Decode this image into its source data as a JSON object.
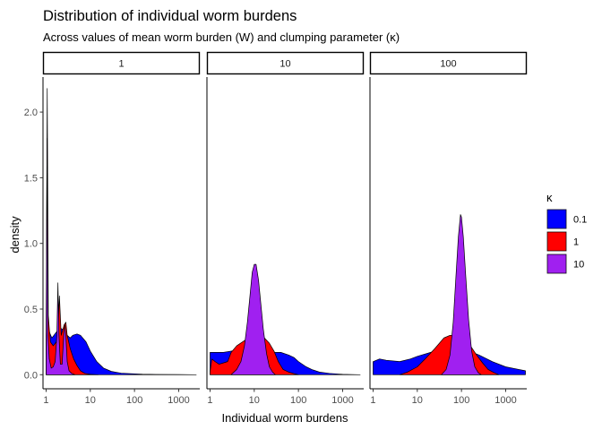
{
  "chart_data": {
    "type": "area",
    "title": "Distribution of individual worm burdens",
    "subtitle": "Across values of mean worm burden (W) and clumping parameter (κ)",
    "xlabel": "Individual worm burdens",
    "ylabel": "density",
    "x_scale": "log10",
    "x_ticks": [
      1,
      10,
      100,
      1000
    ],
    "x_tick_labels": [
      "1",
      "10",
      "100",
      "1000"
    ],
    "y_ticks": [
      0.0,
      0.5,
      1.0,
      1.5,
      2.0
    ],
    "y_tick_labels": [
      "0.0",
      "0.5",
      "1.0",
      "1.5",
      "2.0"
    ],
    "ylim": [
      0,
      2.2
    ],
    "legend": {
      "title": "κ",
      "position": "right",
      "entries": [
        {
          "label": "0.1",
          "color": "#0000ff"
        },
        {
          "label": "1",
          "color": "#ff0000"
        },
        {
          "label": "10",
          "color": "#a020f0"
        }
      ]
    },
    "panels": [
      {
        "label": "1",
        "xlim": [
          0.85,
          3000
        ],
        "series": [
          {
            "name": "0.1",
            "color": "#0000ff",
            "points": [
              [
                1.0,
                0.3
              ],
              [
                1.08,
                0.4
              ],
              [
                1.2,
                0.32
              ],
              [
                1.35,
                0.28
              ],
              [
                1.5,
                0.3
              ],
              [
                1.75,
                0.33
              ],
              [
                2.0,
                0.36
              ],
              [
                2.5,
                0.34
              ],
              [
                3.0,
                0.3
              ],
              [
                3.5,
                0.28
              ],
              [
                4.0,
                0.3
              ],
              [
                5.0,
                0.31
              ],
              [
                6.0,
                0.3
              ],
              [
                8.0,
                0.25
              ],
              [
                10.0,
                0.18
              ],
              [
                14.0,
                0.1
              ],
              [
                20.0,
                0.05
              ],
              [
                30.0,
                0.025
              ],
              [
                50.0,
                0.012
              ],
              [
                80.0,
                0.008
              ],
              [
                150.0,
                0.004
              ],
              [
                300.0,
                0.002
              ],
              [
                1000.0,
                0.001
              ],
              [
                2500.0,
                0.0
              ]
            ]
          },
          {
            "name": "1",
            "color": "#ff0000",
            "points": [
              [
                1.0,
                0.3
              ],
              [
                1.06,
                2.18
              ],
              [
                1.12,
                0.45
              ],
              [
                1.25,
                0.25
              ],
              [
                1.45,
                0.22
              ],
              [
                1.7,
                0.25
              ],
              [
                1.85,
                0.35
              ],
              [
                2.0,
                0.6
              ],
              [
                2.2,
                0.3
              ],
              [
                2.55,
                0.38
              ],
              [
                2.8,
                0.4
              ],
              [
                3.0,
                0.3
              ],
              [
                3.5,
                0.2
              ],
              [
                4.2,
                0.12
              ],
              [
                5.0,
                0.07
              ],
              [
                6.0,
                0.03
              ],
              [
                7.5,
                0.01
              ],
              [
                10.0,
                0.003
              ],
              [
                15.0,
                0.0
              ]
            ]
          },
          {
            "name": "10",
            "color": "#a020f0",
            "points": [
              [
                1.0,
                0.1
              ],
              [
                1.05,
                1.8
              ],
              [
                1.1,
                0.3
              ],
              [
                1.18,
                0.12
              ],
              [
                1.3,
                0.05
              ],
              [
                1.45,
                0.06
              ],
              [
                1.6,
                0.1
              ],
              [
                1.75,
                0.3
              ],
              [
                1.85,
                0.7
              ],
              [
                1.95,
                0.3
              ],
              [
                2.1,
                0.08
              ],
              [
                2.3,
                0.08
              ],
              [
                2.5,
                0.3
              ],
              [
                2.65,
                0.38
              ],
              [
                2.8,
                0.3
              ],
              [
                3.0,
                0.1
              ],
              [
                3.3,
                0.03
              ],
              [
                3.8,
                0.01
              ],
              [
                4.5,
                0.0
              ]
            ]
          }
        ]
      },
      {
        "label": "10",
        "xlim": [
          0.85,
          3000
        ],
        "series": [
          {
            "name": "0.1",
            "color": "#0000ff",
            "points": [
              [
                1.0,
                0.17
              ],
              [
                1.5,
                0.17
              ],
              [
                2.0,
                0.17
              ],
              [
                3.0,
                0.18
              ],
              [
                5.0,
                0.18
              ],
              [
                7.0,
                0.2
              ],
              [
                10.0,
                0.21
              ],
              [
                15.0,
                0.2
              ],
              [
                20.0,
                0.18
              ],
              [
                30.0,
                0.17
              ],
              [
                40.0,
                0.17
              ],
              [
                60.0,
                0.15
              ],
              [
                80.0,
                0.13
              ],
              [
                100.0,
                0.1
              ],
              [
                150.0,
                0.06
              ],
              [
                200.0,
                0.04
              ],
              [
                300.0,
                0.02
              ],
              [
                500.0,
                0.01
              ],
              [
                1000.0,
                0.003
              ],
              [
                2500.0,
                0.0
              ]
            ]
          },
          {
            "name": "1",
            "color": "#ff0000",
            "points": [
              [
                1.0,
                0.02
              ],
              [
                1.1,
                0.12
              ],
              [
                1.3,
                0.1
              ],
              [
                1.6,
                0.08
              ],
              [
                2.0,
                0.09
              ],
              [
                2.5,
                0.1
              ],
              [
                3.0,
                0.17
              ],
              [
                4.0,
                0.22
              ],
              [
                6.0,
                0.26
              ],
              [
                8.0,
                0.28
              ],
              [
                10.0,
                0.3
              ],
              [
                13.0,
                0.3
              ],
              [
                17.0,
                0.28
              ],
              [
                22.0,
                0.24
              ],
              [
                28.0,
                0.18
              ],
              [
                35.0,
                0.1
              ],
              [
                45.0,
                0.04
              ],
              [
                60.0,
                0.02
              ],
              [
                80.0,
                0.008
              ],
              [
                100.0,
                0.0
              ]
            ]
          },
          {
            "name": "10",
            "color": "#a020f0",
            "points": [
              [
                3.0,
                0.0
              ],
              [
                4.0,
                0.04
              ],
              [
                5.0,
                0.1
              ],
              [
                6.0,
                0.22
              ],
              [
                7.0,
                0.4
              ],
              [
                8.0,
                0.6
              ],
              [
                9.0,
                0.78
              ],
              [
                10.0,
                0.84
              ],
              [
                11.0,
                0.84
              ],
              [
                12.5,
                0.72
              ],
              [
                14.0,
                0.55
              ],
              [
                16.0,
                0.35
              ],
              [
                19.0,
                0.16
              ],
              [
                22.0,
                0.06
              ],
              [
                26.0,
                0.02
              ],
              [
                30.0,
                0.0
              ]
            ]
          }
        ]
      },
      {
        "label": "100",
        "xlim": [
          0.85,
          3000
        ],
        "series": [
          {
            "name": "0.1",
            "color": "#0000ff",
            "points": [
              [
                1.0,
                0.1
              ],
              [
                1.4,
                0.12
              ],
              [
                2.0,
                0.11
              ],
              [
                4.0,
                0.1
              ],
              [
                7.0,
                0.12
              ],
              [
                10.0,
                0.14
              ],
              [
                20.0,
                0.17
              ],
              [
                40.0,
                0.2
              ],
              [
                70.0,
                0.22
              ],
              [
                100.0,
                0.2
              ],
              [
                150.0,
                0.18
              ],
              [
                250.0,
                0.15
              ],
              [
                500.0,
                0.1
              ],
              [
                1000.0,
                0.06
              ],
              [
                2000.0,
                0.04
              ],
              [
                2800.0,
                0.03
              ]
            ]
          },
          {
            "name": "1",
            "color": "#ff0000",
            "points": [
              [
                4.0,
                0.0
              ],
              [
                6.0,
                0.02
              ],
              [
                10.0,
                0.06
              ],
              [
                15.0,
                0.12
              ],
              [
                25.0,
                0.2
              ],
              [
                40.0,
                0.28
              ],
              [
                55.0,
                0.3
              ],
              [
                70.0,
                0.3
              ],
              [
                90.0,
                0.3
              ],
              [
                120.0,
                0.28
              ],
              [
                160.0,
                0.22
              ],
              [
                220.0,
                0.15
              ],
              [
                300.0,
                0.09
              ],
              [
                400.0,
                0.04
              ],
              [
                550.0,
                0.015
              ],
              [
                700.0,
                0.0
              ]
            ]
          },
          {
            "name": "10",
            "color": "#a020f0",
            "points": [
              [
                35.0,
                0.0
              ],
              [
                45.0,
                0.04
              ],
              [
                55.0,
                0.15
              ],
              [
                65.0,
                0.4
              ],
              [
                75.0,
                0.75
              ],
              [
                85.0,
                1.05
              ],
              [
                95.0,
                1.22
              ],
              [
                100.0,
                1.2
              ],
              [
                110.0,
                1.05
              ],
              [
                125.0,
                0.75
              ],
              [
                145.0,
                0.42
              ],
              [
                170.0,
                0.18
              ],
              [
                200.0,
                0.06
              ],
              [
                240.0,
                0.015
              ],
              [
                280.0,
                0.0
              ]
            ]
          }
        ]
      }
    ]
  }
}
